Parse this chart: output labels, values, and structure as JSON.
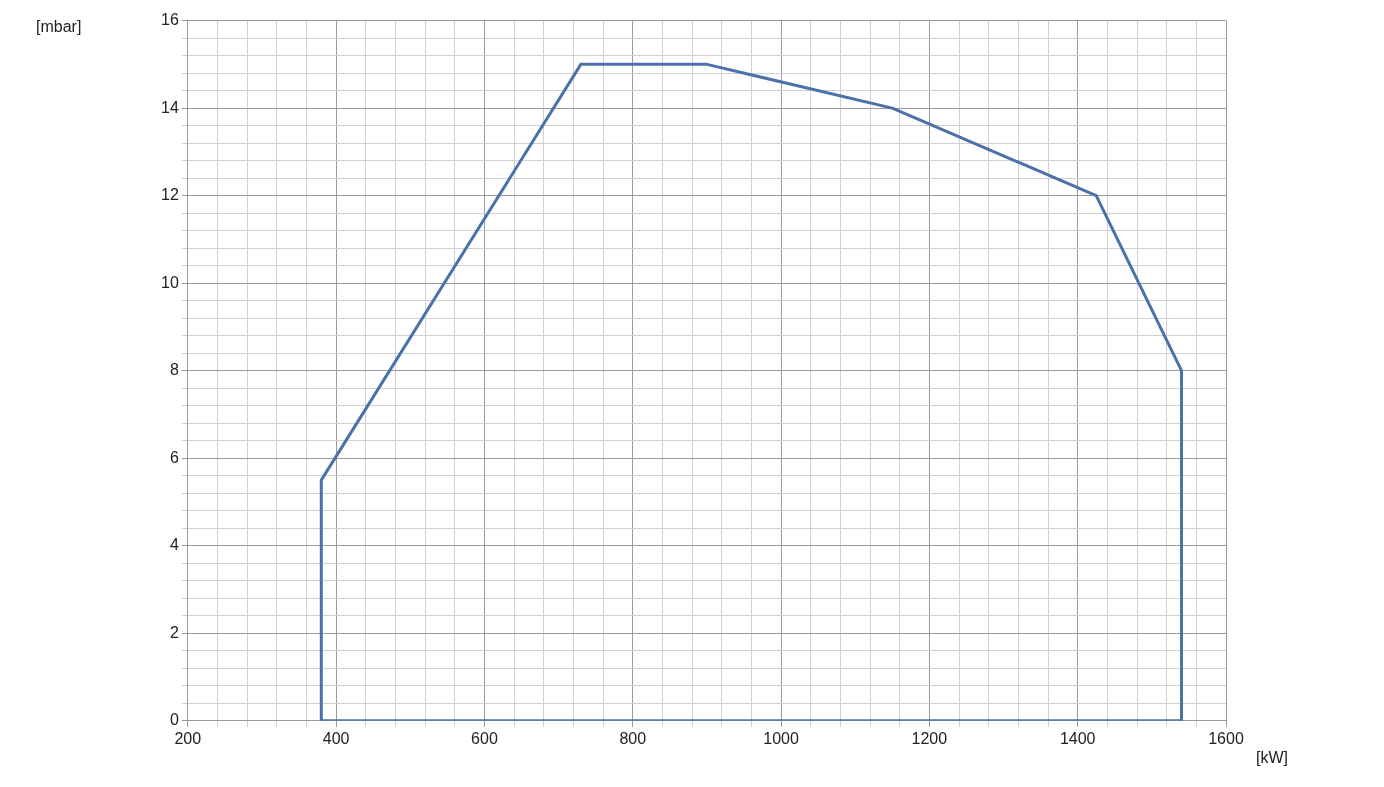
{
  "chart_data": {
    "type": "line",
    "xlabel": "[kW]",
    "ylabel": "[mbar]",
    "series": [
      {
        "color": "#4a72a8",
        "x": [
          380,
          380,
          730,
          900,
          1150,
          1425,
          1540,
          1540
        ],
        "values": [
          0,
          5.5,
          15,
          15,
          14,
          12,
          8,
          0
        ]
      },
      {
        "color": "#4a72a8",
        "x": [
          380,
          1540
        ],
        "values": [
          0,
          0
        ]
      }
    ],
    "xlim": [
      200,
      1600
    ],
    "xticks": [
      200,
      {
        "value": 240,
        "label": null
      },
      {
        "value": 280,
        "label": null
      },
      {
        "value": 320,
        "label": null
      },
      {
        "value": 360,
        "label": null
      },
      400,
      {
        "value": 440,
        "label": null
      },
      {
        "value": 480,
        "label": null
      },
      {
        "value": 520,
        "label": null
      },
      {
        "value": 560,
        "label": null
      },
      600,
      {
        "value": 640,
        "label": null
      },
      {
        "value": 680,
        "label": null
      },
      {
        "value": 720,
        "label": null
      },
      {
        "value": 760,
        "label": null
      },
      800,
      {
        "value": 840,
        "label": null
      },
      {
        "value": 880,
        "label": null
      },
      {
        "value": 920,
        "label": null
      },
      {
        "value": 960,
        "label": null
      },
      1000,
      {
        "value": 1040,
        "label": null
      },
      {
        "value": 1080,
        "label": null
      },
      {
        "value": 1120,
        "label": null
      },
      {
        "value": 1160,
        "label": null
      },
      1200,
      {
        "value": 1240,
        "label": null
      },
      {
        "value": 1280,
        "label": null
      },
      {
        "value": 1320,
        "label": null
      },
      {
        "value": 1360,
        "label": null
      },
      1400,
      {
        "value": 1440,
        "label": null
      },
      {
        "value": 1480,
        "label": null
      },
      {
        "value": 1520,
        "label": null
      },
      {
        "value": 1560,
        "label": null
      },
      1600
    ],
    "ylim": [
      0,
      16
    ],
    "yticks": [
      0,
      {
        "value": 0.4,
        "label": null
      },
      {
        "value": 0.8,
        "label": null
      },
      {
        "value": 1.2,
        "label": null
      },
      {
        "value": 1.6,
        "label": null
      },
      2,
      {
        "value": 2.4,
        "label": null
      },
      {
        "value": 2.8,
        "label": null
      },
      {
        "value": 3.2,
        "label": null
      },
      {
        "value": 3.6,
        "label": null
      },
      4,
      {
        "value": 4.4,
        "label": null
      },
      {
        "value": 4.8,
        "label": null
      },
      {
        "value": 5.2,
        "label": null
      },
      {
        "value": 5.6,
        "label": null
      },
      6,
      {
        "value": 6.4,
        "label": null
      },
      {
        "value": 6.8,
        "label": null
      },
      {
        "value": 7.2,
        "label": null
      },
      {
        "value": 7.6,
        "label": null
      },
      8,
      {
        "value": 8.4,
        "label": null
      },
      {
        "value": 8.8,
        "label": null
      },
      {
        "value": 9.2,
        "label": null
      },
      {
        "value": 9.6,
        "label": null
      },
      10,
      {
        "value": 10.4,
        "label": null
      },
      {
        "value": 10.8,
        "label": null
      },
      {
        "value": 11.2,
        "label": null
      },
      {
        "value": 11.6,
        "label": null
      },
      12,
      {
        "value": 12.4,
        "label": null
      },
      {
        "value": 12.8,
        "label": null
      },
      {
        "value": 13.2,
        "label": null
      },
      {
        "value": 13.6,
        "label": null
      },
      14,
      {
        "value": 14.4,
        "label": null
      },
      {
        "value": 14.8,
        "label": null
      },
      {
        "value": 15.2,
        "label": null
      },
      {
        "value": 15.6,
        "label": null
      },
      16
    ],
    "grid": true,
    "legend": false,
    "marker": "none",
    "line_style": "solid"
  }
}
